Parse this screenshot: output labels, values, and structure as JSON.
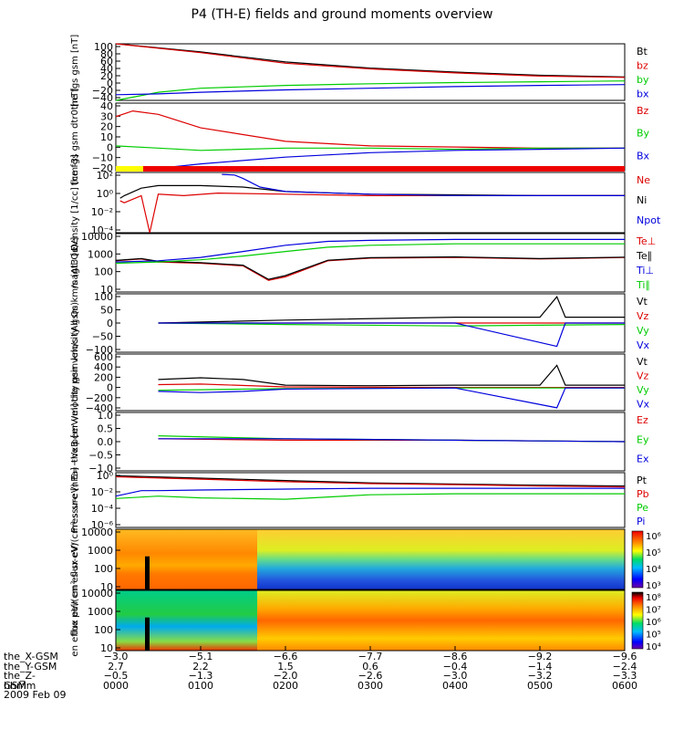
{
  "title": "P4 (TH-E) fields and ground moments overview",
  "chart_data": [
    {
      "type": "line",
      "ylabel": "the fgs gsm [nT]",
      "yticks": [
        "100",
        "80",
        "60",
        "40",
        "20",
        "0",
        "−20",
        "−40"
      ],
      "ylim": [
        -40,
        100
      ],
      "series": [
        {
          "name": "Bt",
          "color": "#000000",
          "x": [
            0.0,
            0.1,
            0.2,
            0.3,
            0.4,
            0.5,
            0.6
          ],
          "y": [
            100,
            80,
            55,
            40,
            30,
            22,
            18
          ]
        },
        {
          "name": "bz",
          "color": "#dd0000",
          "x": [
            0.0,
            0.1,
            0.2,
            0.3,
            0.4,
            0.5,
            0.6
          ],
          "y": [
            100,
            78,
            52,
            38,
            28,
            20,
            17
          ]
        },
        {
          "name": "by",
          "color": "#00cc00",
          "x": [
            0.0,
            0.02,
            0.05,
            0.1,
            0.2,
            0.3,
            0.4,
            0.5,
            0.6
          ],
          "y": [
            -40,
            -32,
            -20,
            -10,
            -3,
            1,
            4,
            6,
            8
          ]
        },
        {
          "name": "bx",
          "color": "#0000dd",
          "x": [
            0.0,
            0.05,
            0.1,
            0.2,
            0.3,
            0.4,
            0.5,
            0.6
          ],
          "y": [
            -26,
            -24,
            -20,
            -14,
            -10,
            -6,
            -3,
            -1
          ]
        }
      ]
    },
    {
      "type": "line",
      "ylabel": "the fgs gsm dtr0 [nT]",
      "yticks": [
        "40",
        "30",
        "20",
        "10",
        "0",
        "−10",
        "−20"
      ],
      "ylim": [
        -20,
        40
      ],
      "series": [
        {
          "name": "Bz",
          "color": "#dd0000",
          "x": [
            0.0,
            0.02,
            0.05,
            0.1,
            0.2,
            0.3,
            0.4,
            0.5,
            0.6
          ],
          "y": [
            28,
            33,
            30,
            18,
            6,
            2,
            1,
            0,
            0
          ]
        },
        {
          "name": "By",
          "color": "#00cc00",
          "x": [
            0.0,
            0.05,
            0.1,
            0.2,
            0.3,
            0.4,
            0.5,
            0.6
          ],
          "y": [
            2,
            0,
            -2,
            0,
            0,
            -1,
            0,
            0
          ]
        },
        {
          "name": "Bx",
          "color": "#0000dd",
          "x": [
            0.0,
            0.05,
            0.1,
            0.2,
            0.3,
            0.4,
            0.5,
            0.6
          ],
          "y": [
            -20,
            -18,
            -14,
            -8,
            -4,
            -2,
            -1,
            0
          ]
        }
      ]
    },
    {
      "type": "line",
      "ylabel": "Density [1/cc] [cm-3]",
      "yticks": [
        "10²",
        "10⁰",
        "10⁻²",
        "10⁻⁴"
      ],
      "yscale": "log",
      "ylim": [
        1e-05,
        100
      ],
      "series": [
        {
          "name": "Ne",
          "color": "#dd0000",
          "x": [
            0.005,
            0.01,
            0.03,
            0.04,
            0.05,
            0.08,
            0.12,
            0.2,
            0.3,
            0.4,
            0.5,
            0.6
          ],
          "y": [
            0.05,
            0.03,
            0.2,
            1e-05,
            0.3,
            0.2,
            0.4,
            0.3,
            0.2,
            0.2,
            0.2,
            0.2
          ]
        },
        {
          "name": "Ni",
          "color": "#000000",
          "x": [
            0.005,
            0.01,
            0.03,
            0.05,
            0.1,
            0.15,
            0.2,
            0.3,
            0.4,
            0.5,
            0.6
          ],
          "y": [
            0.1,
            0.2,
            1.5,
            3,
            3,
            2,
            0.6,
            0.3,
            0.25,
            0.2,
            0.2
          ]
        },
        {
          "name": "Npot",
          "color": "#0000dd",
          "x": [
            0.125,
            0.14,
            0.15,
            0.17,
            0.2,
            0.3,
            0.4,
            0.5,
            0.6
          ],
          "y": [
            60,
            50,
            20,
            2,
            0.6,
            0.3,
            0.2,
            0.2,
            0.2
          ]
        }
      ]
    },
    {
      "type": "line",
      "ylabel": "magt3 [eV]",
      "yticks": [
        "10000",
        "1000",
        "100",
        "10"
      ],
      "yscale": "log",
      "ylim": [
        10,
        10000
      ],
      "series": [
        {
          "name": "Te⊥",
          "color": "#dd0000",
          "x": [
            0.0,
            0.03,
            0.05,
            0.1,
            0.15,
            0.18,
            0.2,
            0.25,
            0.3,
            0.4,
            0.5,
            0.6
          ],
          "y": [
            400,
            500,
            350,
            300,
            220,
            40,
            60,
            400,
            550,
            600,
            500,
            600
          ]
        },
        {
          "name": "Te∥",
          "color": "#000000",
          "x": [
            0.0,
            0.03,
            0.05,
            0.1,
            0.15,
            0.18,
            0.2,
            0.25,
            0.3,
            0.4,
            0.5,
            0.6
          ],
          "y": [
            420,
            520,
            380,
            320,
            240,
            45,
            70,
            430,
            580,
            640,
            520,
            620
          ]
        },
        {
          "name": "Ti⊥",
          "color": "#0000dd",
          "x": [
            0.0,
            0.05,
            0.1,
            0.15,
            0.2,
            0.25,
            0.3,
            0.4,
            0.5,
            0.6
          ],
          "y": [
            350,
            400,
            600,
            1200,
            2500,
            4000,
            4500,
            5000,
            5000,
            5000
          ]
        },
        {
          "name": "Ti∥",
          "color": "#00cc00",
          "x": [
            0.0,
            0.05,
            0.1,
            0.15,
            0.2,
            0.25,
            0.3,
            0.4,
            0.5,
            0.6
          ],
          "y": [
            300,
            350,
            450,
            700,
            1200,
            2000,
            2500,
            3000,
            3000,
            3000
          ]
        }
      ]
    },
    {
      "type": "line",
      "ylabel": "the peir velocity gsm km/s (All Qs)",
      "yticks": [
        "100",
        "50",
        "0",
        "−50",
        "−100"
      ],
      "ylim": [
        -100,
        100
      ],
      "series": [
        {
          "name": "Vt",
          "color": "#000000",
          "x": [
            0.05,
            0.2,
            0.4,
            0.5,
            0.52,
            0.53,
            0.6
          ],
          "y": [
            0,
            10,
            20,
            20,
            90,
            20,
            20
          ]
        },
        {
          "name": "Vz",
          "color": "#dd0000",
          "x": [
            0.05,
            0.2,
            0.4,
            0.6
          ],
          "y": [
            0,
            0,
            0,
            0
          ]
        },
        {
          "name": "Vy",
          "color": "#00cc00",
          "x": [
            0.05,
            0.2,
            0.4,
            0.6
          ],
          "y": [
            0,
            -5,
            -10,
            -5
          ]
        },
        {
          "name": "Vx",
          "color": "#0000dd",
          "x": [
            0.05,
            0.2,
            0.4,
            0.52,
            0.53,
            0.6
          ],
          "y": [
            0,
            0,
            0,
            -80,
            0,
            0
          ]
        }
      ]
    },
    {
      "type": "line",
      "ylabel": "the peer velocity gsm km/s (All Qs)",
      "yticks": [
        "600",
        "400",
        "200",
        "0",
        "−200",
        "−400"
      ],
      "ylim": [
        -400,
        600
      ],
      "series": [
        {
          "name": "Vt",
          "color": "#000000",
          "x": [
            0.05,
            0.1,
            0.15,
            0.2,
            0.3,
            0.4,
            0.5,
            0.52,
            0.53,
            0.6
          ],
          "y": [
            150,
            180,
            150,
            50,
            40,
            50,
            50,
            400,
            50,
            50
          ]
        },
        {
          "name": "Vz",
          "color": "#dd0000",
          "x": [
            0.05,
            0.1,
            0.2,
            0.4,
            0.6
          ],
          "y": [
            60,
            70,
            20,
            10,
            10
          ]
        },
        {
          "name": "Vy",
          "color": "#00cc00",
          "x": [
            0.05,
            0.1,
            0.2,
            0.4,
            0.6
          ],
          "y": [
            -40,
            -30,
            -10,
            0,
            0
          ]
        },
        {
          "name": "Vx",
          "color": "#0000dd",
          "x": [
            0.05,
            0.1,
            0.15,
            0.2,
            0.4,
            0.52,
            0.53,
            0.6
          ],
          "y": [
            -60,
            -80,
            -60,
            -20,
            0,
            -350,
            0,
            0
          ]
        }
      ]
    },
    {
      "type": "line",
      "ylabel": "E=−VxB [mV/m]",
      "yticks": [
        "1.0",
        "0.5",
        "0.0",
        "−0.5",
        "−1.0"
      ],
      "ylim": [
        -1.0,
        1.0
      ],
      "series": [
        {
          "name": "Ez",
          "color": "#dd0000",
          "x": [
            0.05,
            0.2,
            0.4,
            0.6
          ],
          "y": [
            0.1,
            0.05,
            0.05,
            0.0
          ]
        },
        {
          "name": "Ey",
          "color": "#00cc00",
          "x": [
            0.05,
            0.2,
            0.4,
            0.6
          ],
          "y": [
            0.2,
            0.1,
            0.05,
            0.0
          ]
        },
        {
          "name": "Ex",
          "color": "#0000dd",
          "x": [
            0.05,
            0.2,
            0.4,
            0.6
          ],
          "y": [
            0.1,
            0.1,
            0.05,
            0.0
          ]
        }
      ]
    },
    {
      "type": "line",
      "ylabel": "Pressure [nPa]",
      "yticks": [
        "10⁰",
        "10⁻²",
        "10⁻⁴",
        "10⁻⁶"
      ],
      "yscale": "log",
      "ylim": [
        1e-06,
        10
      ],
      "series": [
        {
          "name": "Pt",
          "color": "#000000",
          "x": [
            0.0,
            0.1,
            0.2,
            0.3,
            0.4,
            0.5,
            0.6
          ],
          "y": [
            4,
            2,
            1,
            0.5,
            0.35,
            0.25,
            0.2
          ]
        },
        {
          "name": "Pb",
          "color": "#dd0000",
          "x": [
            0.0,
            0.1,
            0.2,
            0.3,
            0.4,
            0.5,
            0.6
          ],
          "y": [
            3,
            1.5,
            0.7,
            0.4,
            0.3,
            0.2,
            0.15
          ]
        },
        {
          "name": "Pe",
          "color": "#00cc00",
          "x": [
            0.0,
            0.05,
            0.1,
            0.2,
            0.3,
            0.4,
            0.5,
            0.6
          ],
          "y": [
            0.005,
            0.01,
            0.006,
            0.004,
            0.015,
            0.02,
            0.02,
            0.02
          ]
        },
        {
          "name": "Pi",
          "color": "#0000dd",
          "x": [
            0.0,
            0.03,
            0.05,
            0.1,
            0.2,
            0.3,
            0.4,
            0.5,
            0.6
          ],
          "y": [
            0.01,
            0.05,
            0.05,
            0.06,
            0.08,
            0.1,
            0.1,
            0.1,
            0.1
          ]
        }
      ]
    },
    {
      "type": "heatmap",
      "ylabel": "the peir en eflux eV/(cm²-s-sr-eV)",
      "yticks": [
        "10000",
        "1000",
        "100",
        "10"
      ],
      "colorbar_ticks": [
        "10⁶",
        "10⁵",
        "10⁴",
        "10³"
      ]
    },
    {
      "type": "heatmap",
      "ylabel": "the peer en eflux eV/(cm²-s-sr-eV)",
      "yticks": [
        "10000",
        "1000",
        "100",
        "10"
      ],
      "colorbar_ticks": [
        "10⁸",
        "10⁷",
        "10⁶",
        "10⁵",
        "10⁴"
      ]
    }
  ],
  "footer": {
    "rows": [
      {
        "label": "the_X-GSM",
        "values": [
          "−3.0",
          "−5.1",
          "−6.6",
          "−7.7",
          "−8.6",
          "−9.2",
          "−9.6"
        ]
      },
      {
        "label": "the_Y-GSM",
        "values": [
          "2.7",
          "2.2",
          "1.5",
          "0.6",
          "−0.4",
          "−1.4",
          "−2.4"
        ]
      },
      {
        "label": "the_Z-GSM",
        "values": [
          "−0.5",
          "−1.3",
          "−2.0",
          "−2.6",
          "−3.0",
          "−3.2",
          "−3.3"
        ]
      },
      {
        "label": "hhmm",
        "values": [
          "0000",
          "0100",
          "0200",
          "0300",
          "0400",
          "0500",
          "0600"
        ]
      }
    ],
    "date": "2009 Feb 09"
  }
}
